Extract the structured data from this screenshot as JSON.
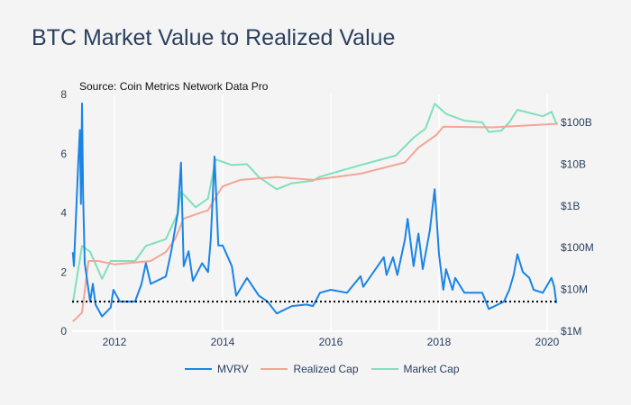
{
  "chart_data": {
    "type": "line",
    "title": "BTC Market Value to Realized Value",
    "annotation": "Source: Coin Metrics Network Data Pro",
    "x_ticks": [
      "2012",
      "2014",
      "2016",
      "2018",
      "2020"
    ],
    "x_tick_values": [
      2012,
      2014,
      2016,
      2018,
      2020
    ],
    "xlim": [
      2011.23,
      2020.2
    ],
    "y_left": {
      "ticks": [
        "0",
        "2",
        "4",
        "6",
        "8"
      ],
      "tick_values": [
        0,
        2,
        4,
        6,
        8
      ],
      "range": [
        0,
        8
      ],
      "scale": "linear"
    },
    "y_right": {
      "ticks": [
        "$1M",
        "$10M",
        "$100M",
        "$1B",
        "$10B",
        "$100B"
      ],
      "tick_values": [
        1000000.0,
        10000000.0,
        100000000.0,
        1000000000.0,
        10000000000.0,
        100000000000.0
      ],
      "range": [
        1000000.0,
        100000000000.0
      ],
      "scale": "log"
    },
    "reference_line": {
      "axis": "left",
      "value": 1,
      "style": "dotted",
      "color": "#000000"
    },
    "grid": "vertical",
    "legend": "bottom",
    "series": [
      {
        "name": "MVRV",
        "axis": "left",
        "color": "#1a84e6",
        "x": [
          2011.23,
          2011.25,
          2011.33,
          2011.36,
          2011.38,
          2011.4,
          2011.42,
          2011.45,
          2011.55,
          2011.6,
          2011.65,
          2011.77,
          2011.93,
          2011.98,
          2012.1,
          2012.38,
          2012.5,
          2012.58,
          2012.67,
          2012.78,
          2012.95,
          2013.05,
          2013.17,
          2013.23,
          2013.28,
          2013.37,
          2013.45,
          2013.62,
          2013.73,
          2013.78,
          2013.85,
          2013.92,
          2014.0,
          2014.17,
          2014.25,
          2014.45,
          2014.67,
          2014.83,
          2015.0,
          2015.28,
          2015.55,
          2015.67,
          2015.8,
          2016.0,
          2016.3,
          2016.55,
          2016.6,
          2016.98,
          2017.03,
          2017.15,
          2017.23,
          2017.37,
          2017.42,
          2017.53,
          2017.62,
          2017.7,
          2017.83,
          2017.92,
          2018.0,
          2018.08,
          2018.13,
          2018.25,
          2018.3,
          2018.47,
          2018.63,
          2018.8,
          2018.92,
          2019.2,
          2019.3,
          2019.38,
          2019.45,
          2019.55,
          2019.67,
          2019.75,
          2019.92,
          2020.08,
          2020.13,
          2020.17
        ],
        "y": [
          2.67,
          2.2,
          5.7,
          6.8,
          4.3,
          7.7,
          4.6,
          2.3,
          1.0,
          1.6,
          0.9,
          0.5,
          0.8,
          1.4,
          1.0,
          1.0,
          1.6,
          2.3,
          1.6,
          1.7,
          1.85,
          2.7,
          4.0,
          5.7,
          2.2,
          2.7,
          1.7,
          2.3,
          2.0,
          3.1,
          5.9,
          2.9,
          2.9,
          2.2,
          1.2,
          1.8,
          1.2,
          1.0,
          0.6,
          0.85,
          0.9,
          0.85,
          1.3,
          1.4,
          1.3,
          1.86,
          1.5,
          2.5,
          1.9,
          2.5,
          1.9,
          3.1,
          3.8,
          2.2,
          3.3,
          2.1,
          3.4,
          4.8,
          2.6,
          1.4,
          2.1,
          1.4,
          1.8,
          1.3,
          1.3,
          1.3,
          0.75,
          1.0,
          1.4,
          1.9,
          2.6,
          2.0,
          1.8,
          1.4,
          1.3,
          1.8,
          1.5,
          0.95
        ]
      },
      {
        "name": "Realized Cap",
        "axis": "right",
        "color": "#f4a595",
        "x": [
          2011.23,
          2011.4,
          2011.47,
          2011.52,
          2011.7,
          2012.0,
          2012.67,
          2012.95,
          2013.12,
          2013.28,
          2013.73,
          2013.87,
          2014.0,
          2014.33,
          2015.0,
          2015.67,
          2016.55,
          2017.37,
          2017.62,
          2017.95,
          2018.08,
          2019.0,
          2019.67,
          2020.2
        ],
        "y": [
          1700000.0,
          2800000.0,
          15000000.0,
          48000000.0,
          48000000.0,
          40000000.0,
          48000000.0,
          79000000.0,
          160000000.0,
          500000000.0,
          790000000.0,
          1600000000.0,
          2950000000.0,
          4200000000.0,
          4900000000.0,
          4200000000.0,
          5900000000.0,
          11000000000.0,
          25000000000.0,
          50000000000.0,
          79000000000.0,
          76000000000.0,
          85000000000.0,
          93000000000.0
        ]
      },
      {
        "name": "Market Cap",
        "axis": "right",
        "color": "#7fe0bb",
        "x": [
          2011.23,
          2011.4,
          2011.55,
          2011.77,
          2011.93,
          2012.38,
          2012.58,
          2012.95,
          2013.17,
          2013.23,
          2013.33,
          2013.5,
          2013.73,
          2013.87,
          2014.17,
          2014.45,
          2014.67,
          2015.0,
          2015.28,
          2015.67,
          2015.8,
          2016.55,
          2017.2,
          2017.53,
          2017.75,
          2017.92,
          2018.13,
          2018.47,
          2018.8,
          2018.92,
          2019.15,
          2019.3,
          2019.45,
          2019.92,
          2020.08,
          2020.17
        ],
        "y": [
          4700000.0,
          110000000.0,
          80000000.0,
          18000000.0,
          48000000.0,
          48000000.0,
          110000000.0,
          160000000.0,
          660000000.0,
          2200000000.0,
          1600000000.0,
          930000000.0,
          1500000000.0,
          13000000000.0,
          9500000000.0,
          10000000000.0,
          4900000000.0,
          2500000000.0,
          3500000000.0,
          4000000000.0,
          5000000000.0,
          9500000000.0,
          16000000000.0,
          43000000000.0,
          71000000000.0,
          280000000000.0,
          160000000000.0,
          110000000000.0,
          100000000000.0,
          59000000000.0,
          63000000000.0,
          100000000000.0,
          200000000000.0,
          140000000000.0,
          180000000000.0,
          95000000000.0
        ]
      }
    ]
  }
}
